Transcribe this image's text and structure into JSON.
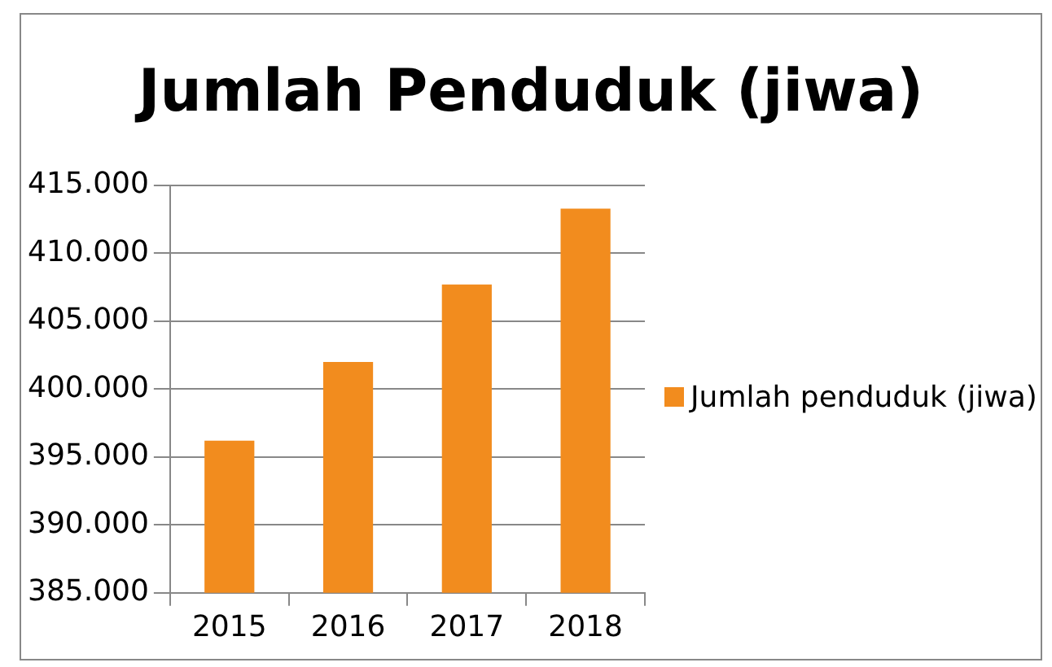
{
  "chart_data": {
    "type": "bar",
    "title": "Jumlah Penduduk (jiwa)",
    "categories": [
      "2015",
      "2016",
      "2017",
      "2018"
    ],
    "series": [
      {
        "name": "Jumlah penduduk (jiwa)",
        "color": "#f28c1e",
        "values": [
          396200,
          402000,
          407700,
          413300
        ]
      }
    ],
    "ylim": [
      385000,
      415000
    ],
    "yticks": [
      {
        "value": 385000,
        "label": "385.000"
      },
      {
        "value": 390000,
        "label": "390.000"
      },
      {
        "value": 395000,
        "label": "395.000"
      },
      {
        "value": 400000,
        "label": "400.000"
      },
      {
        "value": 405000,
        "label": "405.000"
      },
      {
        "value": 410000,
        "label": "410.000"
      },
      {
        "value": 415000,
        "label": "415.000"
      }
    ],
    "grid": "y",
    "legend": "right"
  }
}
